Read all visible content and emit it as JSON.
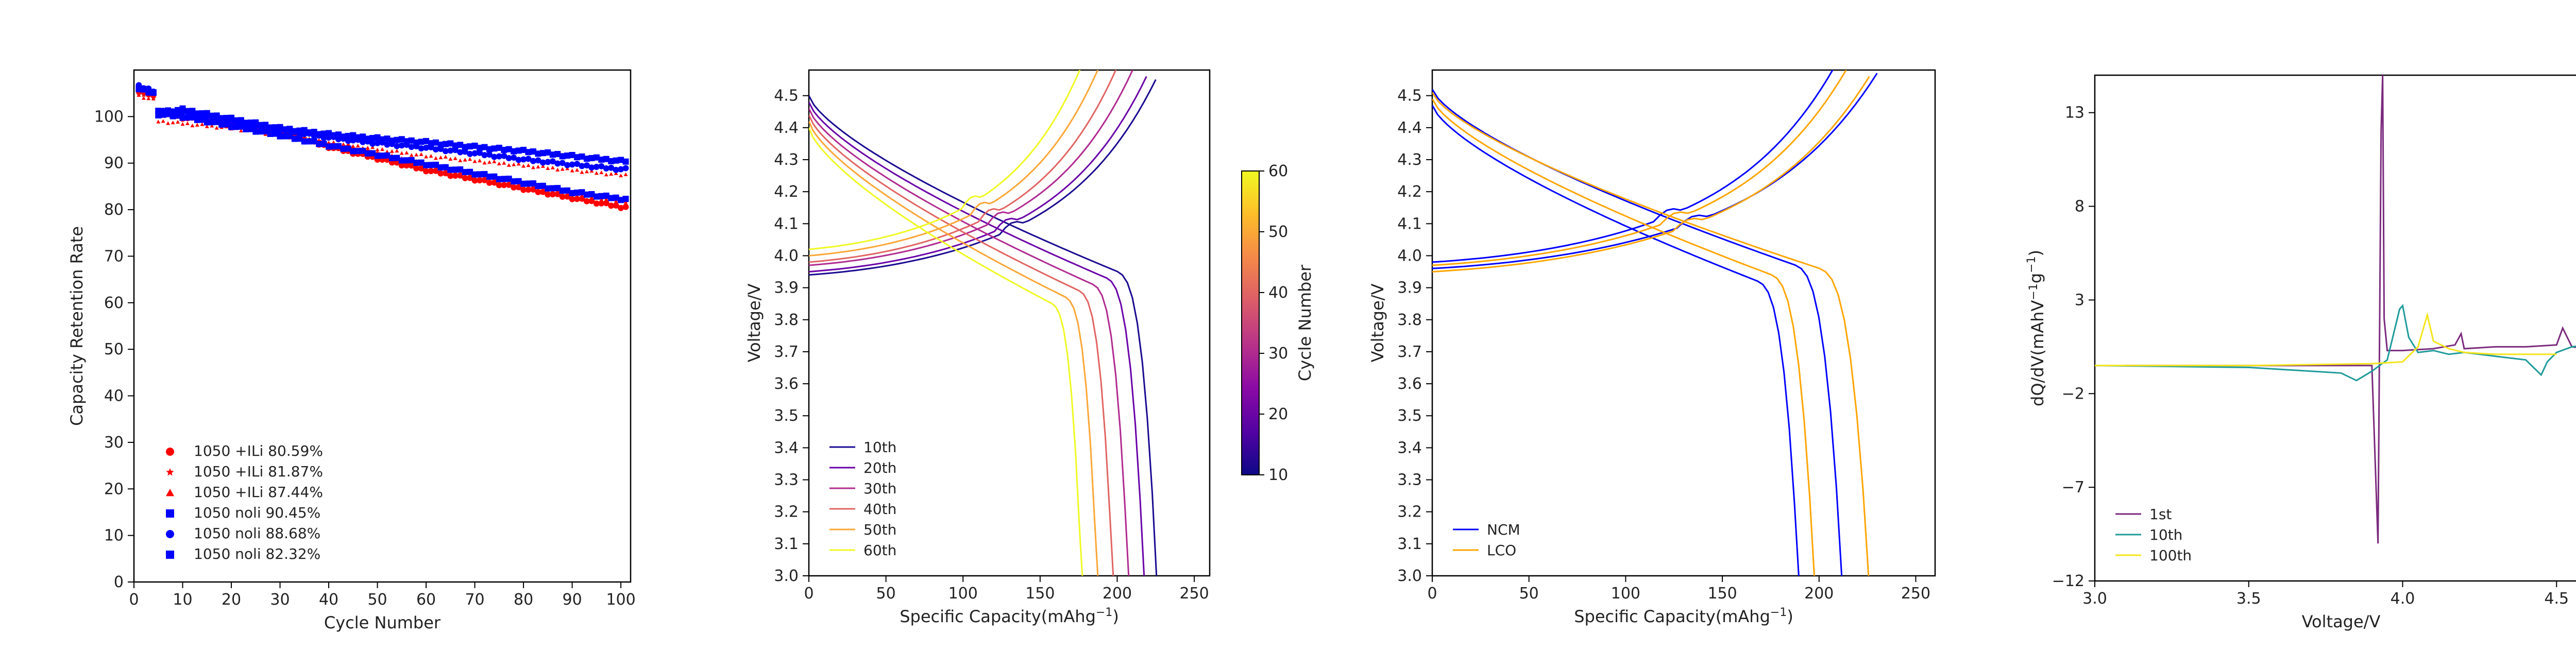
{
  "chart_data": [
    {
      "type": "scatter",
      "xlabel": "Cycle Number",
      "ylabel": "Capacity Retention Rate",
      "xlim": [
        0,
        102
      ],
      "ylim": [
        0,
        110
      ],
      "xticks": [
        "0",
        "10",
        "20",
        "30",
        "40",
        "50",
        "60",
        "70",
        "80",
        "90",
        "100"
      ],
      "yticks": [
        "0",
        "10",
        "20",
        "30",
        "40",
        "50",
        "60",
        "70",
        "80",
        "90",
        "100"
      ],
      "legend_position": "lower-left",
      "series": [
        {
          "name": "1050 +ILi 80.59%",
          "color": "#ff0000",
          "marker": "circle",
          "start": 105.5,
          "x": [
            1,
            5,
            10,
            20,
            30,
            40,
            50,
            60,
            70,
            80,
            90,
            100
          ],
          "y": [
            105.5,
            101,
            99.8,
            98.5,
            96.5,
            93.5,
            91,
            88.5,
            86.5,
            84.5,
            82.5,
            80.59
          ]
        },
        {
          "name": "1050 +ILi 81.87%",
          "color": "#ff0000",
          "marker": "star",
          "start": 105,
          "x": [
            1,
            5,
            10,
            20,
            30,
            40,
            50,
            60,
            70,
            80,
            90,
            100
          ],
          "y": [
            105,
            100.5,
            100,
            98.5,
            96.5,
            94,
            92,
            89.5,
            87.5,
            85.5,
            83.5,
            81.87
          ]
        },
        {
          "name": "1050 +ILi 87.44%",
          "color": "#ff0000",
          "marker": "triangle",
          "start": 104.5,
          "x": [
            1,
            5,
            10,
            20,
            30,
            40,
            50,
            60,
            70,
            80,
            90,
            100
          ],
          "y": [
            104.5,
            99,
            98.5,
            97.5,
            96,
            94.5,
            93,
            91.5,
            90.5,
            89.5,
            88.5,
            87.44
          ]
        },
        {
          "name": "1050 noli 90.45%",
          "color": "#0000ff",
          "marker": "square",
          "start": 106,
          "x": [
            1,
            5,
            10,
            20,
            30,
            40,
            50,
            60,
            70,
            80,
            90,
            100
          ],
          "y": [
            106,
            101,
            101.5,
            99.5,
            97.5,
            96.2,
            95.3,
            94.5,
            93.5,
            92.6,
            91.5,
            90.45
          ]
        },
        {
          "name": "1050 noli 88.68%",
          "color": "#0000ff",
          "marker": "circle",
          "start": 106.5,
          "x": [
            1,
            5,
            10,
            20,
            30,
            40,
            50,
            60,
            70,
            80,
            90,
            100
          ],
          "y": [
            106.5,
            101,
            101,
            99,
            97,
            95.5,
            94.3,
            93.3,
            92.1,
            90.8,
            89.7,
            88.68
          ]
        },
        {
          "name": "1050 noli 82.32%",
          "color": "#0000ff",
          "marker": "square",
          "start": 106,
          "x": [
            1,
            5,
            10,
            20,
            30,
            40,
            50,
            60,
            70,
            80,
            90,
            100
          ],
          "y": [
            106,
            100.5,
            100,
            98,
            96,
            93.8,
            91.8,
            89.8,
            87.8,
            85.8,
            83.8,
            82.32
          ]
        }
      ]
    },
    {
      "type": "line",
      "xlabel": "Specific Capacity(mAhg$^{-1}$)",
      "ylabel": "Voltage/V",
      "xlim": [
        0,
        260
      ],
      "ylim": [
        3.0,
        4.58
      ],
      "xticks": [
        "0",
        "50",
        "100",
        "150",
        "200",
        "250"
      ],
      "yticks": [
        "3.0",
        "3.1",
        "3.2",
        "3.3",
        "3.4",
        "3.5",
        "3.6",
        "3.7",
        "3.8",
        "3.9",
        "4.0",
        "4.1",
        "4.2",
        "4.3",
        "4.4",
        "4.5"
      ],
      "legend_position": "lower-left",
      "colorbar": {
        "label": "Cycle Number",
        "ticks": [
          "10",
          "20",
          "30",
          "40",
          "50",
          "60"
        ],
        "min": 10,
        "max": 60,
        "colormap": "plasma"
      },
      "series": [
        {
          "name": "10th",
          "color": "#1a0a91",
          "charge_cap": 225,
          "charge_start": 3.94,
          "discharge_cap": 226,
          "discharge_start": 4.5
        },
        {
          "name": "20th",
          "color": "#6a00a8",
          "charge_cap": 219,
          "charge_start": 3.95,
          "discharge_cap": 218,
          "discharge_start": 4.48
        },
        {
          "name": "30th",
          "color": "#b12a90",
          "charge_cap": 210,
          "charge_start": 3.97,
          "discharge_cap": 208,
          "discharge_start": 4.46
        },
        {
          "name": "40th",
          "color": "#e16462",
          "charge_cap": 200,
          "charge_start": 3.98,
          "discharge_cap": 198,
          "discharge_start": 4.44
        },
        {
          "name": "50th",
          "color": "#fca636",
          "charge_cap": 190,
          "charge_start": 4.0,
          "discharge_cap": 188,
          "discharge_start": 4.42
        },
        {
          "name": "60th",
          "color": "#f0f921",
          "charge_cap": 180,
          "charge_start": 4.02,
          "discharge_cap": 178,
          "discharge_start": 4.4
        }
      ]
    },
    {
      "type": "line",
      "xlabel": "Specific Capacity(mAhg$^{-1}$)",
      "ylabel": "Voltage/V",
      "xlim": [
        0,
        260
      ],
      "ylim": [
        3.0,
        4.58
      ],
      "xticks": [
        "0",
        "50",
        "100",
        "150",
        "200",
        "250"
      ],
      "yticks": [
        "3.0",
        "3.1",
        "3.2",
        "3.3",
        "3.4",
        "3.5",
        "3.6",
        "3.7",
        "3.8",
        "3.9",
        "4.0",
        "4.1",
        "4.2",
        "4.3",
        "4.4",
        "4.5"
      ],
      "legend_position": "lower-left",
      "series": [
        {
          "name": "NCM",
          "color": "#0000ff",
          "curves": [
            {
              "charge_cap": 208,
              "charge_start": 3.98,
              "discharge_cap": 190,
              "discharge_start": 4.47
            },
            {
              "charge_cap": 230,
              "charge_start": 3.96,
              "discharge_cap": 212,
              "discharge_start": 4.52
            }
          ]
        },
        {
          "name": "LCO",
          "color": "#ffa500",
          "curves": [
            {
              "charge_cap": 214,
              "charge_start": 3.97,
              "discharge_cap": 198,
              "discharge_start": 4.49
            },
            {
              "charge_cap": 226,
              "charge_start": 3.95,
              "discharge_cap": 226,
              "discharge_start": 4.51
            }
          ]
        }
      ]
    },
    {
      "type": "line",
      "xlabel": "Voltage/V",
      "ylabel": "dQ/dV(mAhV$^{-1}$g$^{-1}$)",
      "xlim": [
        3.0,
        4.6
      ],
      "ylim": [
        -12,
        15
      ],
      "xticks": [
        "3.0",
        "3.5",
        "4.0",
        "4.5"
      ],
      "yticks": [
        "−12",
        "−7",
        "−2",
        "3",
        "8",
        "13"
      ],
      "ytick_values": [
        -12,
        -7,
        -2,
        3,
        8,
        13
      ],
      "xtick_values": [
        3.0,
        3.5,
        4.0,
        4.5
      ],
      "legend_position": "lower-left",
      "series": [
        {
          "name": "1st",
          "color": "#7b2a7e",
          "x": [
            3.1,
            3.5,
            3.9,
            3.92,
            3.93,
            3.935,
            3.94,
            3.95,
            4.0,
            4.1,
            4.17,
            4.19,
            4.2,
            4.3,
            4.4,
            4.5,
            4.52,
            4.55,
            4.6
          ],
          "y": [
            -0.5,
            -0.5,
            -0.5,
            -10,
            12,
            15,
            2,
            0.3,
            0.3,
            0.4,
            0.6,
            1.2,
            0.4,
            0.5,
            0.5,
            0.6,
            1.5,
            0.5,
            0.4
          ]
        },
        {
          "name": "10th",
          "color": "#1e9a9a",
          "x": [
            3.0,
            3.5,
            3.8,
            3.85,
            3.9,
            3.95,
            3.99,
            4.0,
            4.02,
            4.05,
            4.1,
            4.15,
            4.2,
            4.3,
            4.4,
            4.45,
            4.47,
            4.5,
            4.55,
            4.6
          ],
          "y": [
            -0.5,
            -0.6,
            -0.9,
            -1.3,
            -0.8,
            -0.2,
            2.5,
            2.7,
            1.0,
            0.2,
            0.3,
            0.1,
            0.2,
            0.0,
            -0.2,
            -1.0,
            -0.3,
            0.2,
            0.5,
            0.6
          ]
        },
        {
          "name": "100th",
          "color": "#f5e51b",
          "x": [
            3.0,
            3.5,
            3.9,
            4.0,
            4.05,
            4.08,
            4.1,
            4.15,
            4.2,
            4.3,
            4.5
          ],
          "y": [
            -0.5,
            -0.5,
            -0.4,
            -0.3,
            0.5,
            2.2,
            0.8,
            0.4,
            0.2,
            0.1,
            0.1
          ]
        }
      ]
    }
  ]
}
